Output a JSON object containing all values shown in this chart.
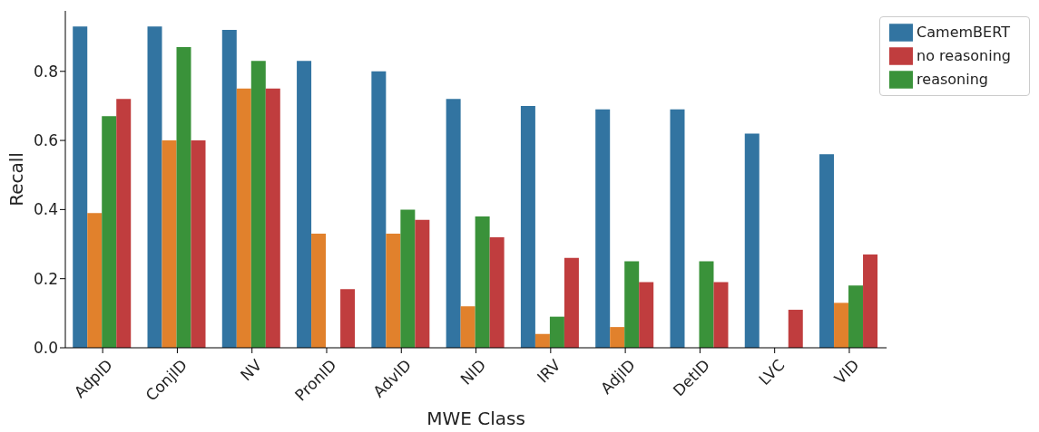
{
  "chart_data": {
    "type": "bar",
    "xlabel": "MWE Class",
    "ylabel": "Recall",
    "categories": [
      "AdpID",
      "ConjID",
      "NV",
      "PronID",
      "AdvID",
      "NID",
      "IRV",
      "AdjID",
      "DetID",
      "LVC",
      "VID"
    ],
    "series": [
      {
        "name": "CamemBERT",
        "color": "#3274a1",
        "values": [
          0.93,
          0.93,
          0.92,
          0.83,
          0.8,
          0.72,
          0.7,
          0.69,
          0.69,
          0.62,
          0.56
        ]
      },
      {
        "color": "#e1812c",
        "values": [
          0.39,
          0.6,
          0.75,
          0.33,
          0.33,
          0.12,
          0.04,
          0.06,
          0,
          0,
          0.13
        ]
      },
      {
        "name": "reasoning",
        "color": "#3a923a",
        "values": [
          0.67,
          0.87,
          0.83,
          0,
          0.4,
          0.38,
          0.09,
          0.25,
          0.25,
          0,
          0.18
        ]
      },
      {
        "name": "no reasoning",
        "color": "#c03d3e",
        "values": [
          0.72,
          0.6,
          0.75,
          0.17,
          0.37,
          0.32,
          0.26,
          0.19,
          0.19,
          0.11,
          0.27
        ]
      }
    ],
    "ylim": [
      0,
      0.975
    ],
    "yticks": [
      {
        "value": 0,
        "label": "0.0"
      },
      {
        "value": 0.2,
        "label": "0.2"
      },
      {
        "value": 0.4,
        "label": "0.4"
      },
      {
        "value": 0.6,
        "label": "0.6"
      },
      {
        "value": 0.8,
        "label": "0.8"
      }
    ],
    "grid": false,
    "legend": "top right"
  }
}
